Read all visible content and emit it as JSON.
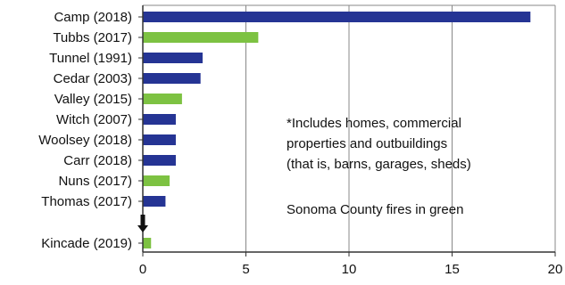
{
  "chart_data": {
    "type": "bar",
    "orientation": "horizontal",
    "categories": [
      "Camp (2018)",
      "Tubbs (2017)",
      "Tunnel (1991)",
      "Cedar (2003)",
      "Valley (2015)",
      "Witch (2007)",
      "Woolsey (2018)",
      "Carr (2018)",
      "Nuns (2017)",
      "Thomas (2017)",
      "Kincade (2019)"
    ],
    "values": [
      18.8,
      5.6,
      2.9,
      2.8,
      1.9,
      1.6,
      1.6,
      1.6,
      1.3,
      1.1,
      0.4
    ],
    "sonoma": [
      false,
      true,
      false,
      false,
      true,
      false,
      false,
      false,
      true,
      false,
      true
    ],
    "xlim": [
      0,
      20
    ],
    "xticks": [
      "0",
      "5",
      "10",
      "15",
      "20"
    ],
    "grid": "vertical",
    "colors": {
      "default": "#253494",
      "sonoma": "#7dc242",
      "grid": "#888888",
      "axis": "#333333"
    },
    "break_marker": "down-arrow-icon",
    "annotations": [
      "*Includes homes, commercial",
      "properties and outbuildings",
      "(that is, barns, garages, sheds)",
      "",
      "Sonoma County fires in green"
    ]
  }
}
